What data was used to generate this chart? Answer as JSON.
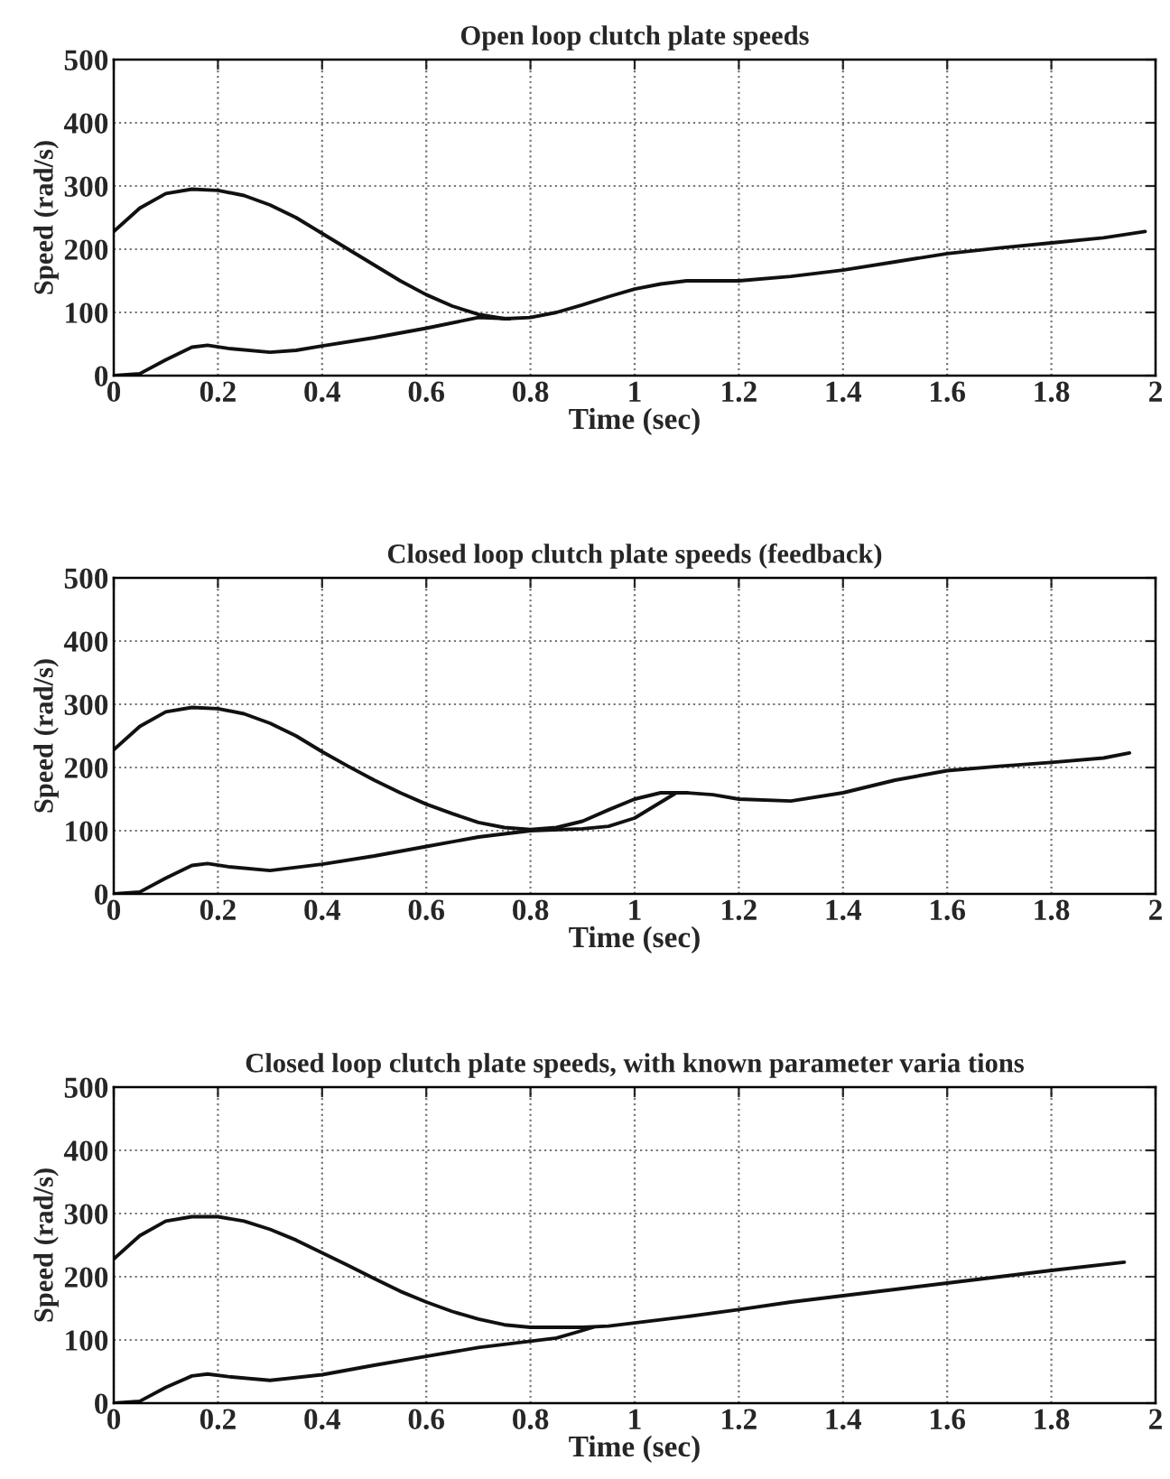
{
  "chart_data": [
    {
      "type": "line",
      "title": "Open loop clutch plate speeds",
      "xlabel": "Time (sec)",
      "ylabel": "Speed (rad/s)",
      "xlim": [
        0,
        2
      ],
      "ylim": [
        0,
        500
      ],
      "xticks": [
        0,
        0.2,
        0.4,
        0.6,
        0.8,
        1,
        1.2,
        1.4,
        1.6,
        1.8,
        2
      ],
      "yticks": [
        0,
        100,
        200,
        300,
        400,
        500
      ],
      "grid": true,
      "line_style": "solid",
      "series": [
        {
          "color": "#111111",
          "x": [
            0,
            0.05,
            0.1,
            0.15,
            0.2,
            0.25,
            0.3,
            0.35,
            0.4,
            0.45,
            0.5,
            0.55,
            0.6,
            0.65,
            0.7,
            0.75,
            0.8,
            0.85,
            0.9,
            0.95,
            1.0,
            1.05,
            1.1,
            1.2,
            1.3,
            1.4,
            1.5,
            1.6,
            1.7,
            1.8,
            1.9,
            1.98
          ],
          "values": [
            228,
            265,
            288,
            295,
            293,
            285,
            270,
            250,
            225,
            200,
            175,
            150,
            128,
            110,
            97,
            90,
            92,
            100,
            112,
            125,
            137,
            145,
            150,
            150,
            157,
            167,
            180,
            193,
            202,
            210,
            218,
            228
          ]
        },
        {
          "color": "#111111",
          "x": [
            0,
            0.05,
            0.1,
            0.15,
            0.18,
            0.22,
            0.3,
            0.35,
            0.4,
            0.5,
            0.6,
            0.7,
            0.76
          ],
          "values": [
            0,
            3,
            25,
            45,
            48,
            43,
            37,
            40,
            47,
            60,
            75,
            92,
            90
          ]
        }
      ]
    },
    {
      "type": "line",
      "title": "Closed loop clutch plate speeds (feedback)",
      "xlabel": "Time (sec)",
      "ylabel": "Speed (rad/s)",
      "xlim": [
        0,
        2
      ],
      "ylim": [
        0,
        500
      ],
      "xticks": [
        0,
        0.2,
        0.4,
        0.6,
        0.8,
        1,
        1.2,
        1.4,
        1.6,
        1.8,
        2
      ],
      "yticks": [
        0,
        100,
        200,
        300,
        400,
        500
      ],
      "grid": true,
      "line_style": "solid",
      "series": [
        {
          "color": "#111111",
          "x": [
            0,
            0.05,
            0.1,
            0.15,
            0.2,
            0.25,
            0.3,
            0.35,
            0.4,
            0.45,
            0.5,
            0.55,
            0.6,
            0.65,
            0.7,
            0.75,
            0.8,
            0.85,
            0.9,
            0.95,
            1.0,
            1.05,
            1.1,
            1.15,
            1.2,
            1.3,
            1.4,
            1.5,
            1.6,
            1.7,
            1.8,
            1.9,
            1.95
          ],
          "values": [
            228,
            265,
            288,
            295,
            293,
            285,
            270,
            250,
            225,
            202,
            180,
            160,
            142,
            127,
            113,
            105,
            102,
            105,
            115,
            133,
            150,
            160,
            160,
            157,
            150,
            147,
            160,
            180,
            195,
            202,
            208,
            215,
            223
          ]
        },
        {
          "color": "#111111",
          "x": [
            0,
            0.05,
            0.1,
            0.15,
            0.18,
            0.22,
            0.3,
            0.4,
            0.5,
            0.6,
            0.7,
            0.8,
            0.9,
            0.95,
            1.0,
            1.05,
            1.08
          ],
          "values": [
            0,
            3,
            25,
            45,
            48,
            43,
            37,
            47,
            60,
            75,
            90,
            100,
            103,
            107,
            120,
            145,
            160
          ]
        }
      ]
    },
    {
      "type": "line",
      "title": "Closed loop clutch plate speeds, with known parameter varia tions",
      "xlabel": "Time (sec)",
      "ylabel": "Speed (rad/s)",
      "xlim": [
        0,
        2
      ],
      "ylim": [
        0,
        500
      ],
      "xticks": [
        0,
        0.2,
        0.4,
        0.6,
        0.8,
        1,
        1.2,
        1.4,
        1.6,
        1.8,
        2
      ],
      "yticks": [
        0,
        100,
        200,
        300,
        400,
        500
      ],
      "grid": true,
      "line_style": "solid",
      "series": [
        {
          "color": "#111111",
          "x": [
            0,
            0.05,
            0.1,
            0.15,
            0.2,
            0.25,
            0.3,
            0.35,
            0.4,
            0.45,
            0.5,
            0.55,
            0.6,
            0.65,
            0.7,
            0.75,
            0.8,
            0.85,
            0.9,
            0.95,
            1.0,
            1.1,
            1.2,
            1.3,
            1.4,
            1.5,
            1.6,
            1.7,
            1.8,
            1.94
          ],
          "values": [
            228,
            265,
            288,
            295,
            295,
            288,
            275,
            258,
            238,
            218,
            197,
            177,
            160,
            145,
            133,
            124,
            120,
            120,
            120,
            122,
            127,
            137,
            148,
            160,
            170,
            180,
            190,
            200,
            210,
            223
          ]
        },
        {
          "color": "#111111",
          "x": [
            0,
            0.05,
            0.1,
            0.15,
            0.18,
            0.22,
            0.3,
            0.4,
            0.5,
            0.6,
            0.7,
            0.8,
            0.85,
            0.9,
            0.92
          ],
          "values": [
            0,
            3,
            25,
            43,
            46,
            42,
            36,
            45,
            60,
            74,
            88,
            98,
            103,
            115,
            120
          ]
        }
      ]
    }
  ]
}
